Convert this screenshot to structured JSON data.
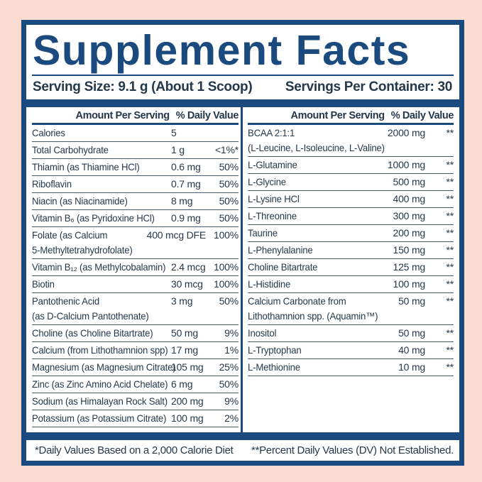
{
  "title": "Supplement Facts",
  "serving": {
    "size_label": "Serving Size: 9.1 g (About 1 Scoop)",
    "per_container_label": "Servings Per Container: 30"
  },
  "table": {
    "header": {
      "amount": "Amount Per Serving",
      "dv": "% Daily Value"
    },
    "left_rows": [
      {
        "name": "Calories",
        "amount": "5",
        "dv": ""
      },
      {
        "name": "Total Carbohydrate",
        "amount": "1 g",
        "dv": "<1%*"
      },
      {
        "name": "Thiamin (as Thiamine HCl)",
        "amount": "0.6 mg",
        "dv": "50%"
      },
      {
        "name": "Riboflavin",
        "amount": "0.7 mg",
        "dv": "50%"
      },
      {
        "name": "Niacin (as Niacinamide)",
        "amount": "8 mg",
        "dv": "50%"
      },
      {
        "name": "Vitamin B₆ (as Pyridoxine HCl)",
        "amount": "0.9 mg",
        "dv": "50%"
      },
      {
        "name": "Folate (as Calcium",
        "name2": "5-Methyltetrahydrofolate)",
        "amount": "400 mcg DFE",
        "dv": "100%"
      },
      {
        "name": "Vitamin B₁₂ (as Methylcobalamin)",
        "amount": "2.4 mcg",
        "dv": "100%"
      },
      {
        "name": "Biotin",
        "amount": "30 mcg",
        "dv": "100%"
      },
      {
        "name": "Pantothenic Acid",
        "name2": "(as D-Calcium Pantothenate)",
        "amount": "3 mg",
        "dv": "50%"
      },
      {
        "name": "Choline (as Choline Bitartrate)",
        "amount": "50 mg",
        "dv": "9%"
      },
      {
        "name": "Calcium (from Lithothamnion spp)",
        "amount": "17 mg",
        "dv": "1%"
      },
      {
        "name": "Magnesium (as Magnesium Citrate)",
        "amount": "105 mg",
        "dv": "25%"
      },
      {
        "name": "Zinc (as Zinc Amino Acid Chelate)",
        "amount": "6 mg",
        "dv": "50%"
      },
      {
        "name": "Sodium (as Himalayan Rock Salt)",
        "amount": "200 mg",
        "dv": "9%"
      },
      {
        "name": "Potassium (as Potassium Citrate)",
        "amount": "100 mg",
        "dv": "2%"
      }
    ],
    "right_rows": [
      {
        "name": "BCAA 2:1:1",
        "name2": "(L-Leucine, L-Isoleucine, L-Valine)",
        "amount": "2000 mg",
        "dv": "**"
      },
      {
        "name": "L-Glutamine",
        "amount": "1000 mg",
        "dv": "**"
      },
      {
        "name": "L-Glycine",
        "amount": "500 mg",
        "dv": "**"
      },
      {
        "name": "L-Lysine HCl",
        "amount": "400 mg",
        "dv": "**"
      },
      {
        "name": "L-Threonine",
        "amount": "300 mg",
        "dv": "**"
      },
      {
        "name": "Taurine",
        "amount": "200 mg",
        "dv": "**"
      },
      {
        "name": "L-Phenylalanine",
        "amount": "150 mg",
        "dv": "**"
      },
      {
        "name": "Choline Bitartrate",
        "amount": "125 mg",
        "dv": "**"
      },
      {
        "name": "L-Histidine",
        "amount": "100 mg",
        "dv": "**"
      },
      {
        "name": "Calcium Carbonate from",
        "name2": "Lithothamnion spp. (Aquamin™)",
        "amount": "50 mg",
        "dv": "**"
      },
      {
        "name": "Inositol",
        "amount": "50 mg",
        "dv": "**"
      },
      {
        "name": "L-Tryptophan",
        "amount": "40 mg",
        "dv": "**"
      },
      {
        "name": "L-Methionine",
        "amount": "10 mg",
        "dv": "**"
      }
    ]
  },
  "footnotes": {
    "left": "*Daily Values Based on a 2,000 Calorie Diet",
    "right": "**Percent Daily Values (DV) Not Established."
  },
  "colors": {
    "navy": "#1b4a7e",
    "text": "#24384a",
    "background_pink": "#fcdbd1",
    "separator": "#4a5c6e"
  }
}
